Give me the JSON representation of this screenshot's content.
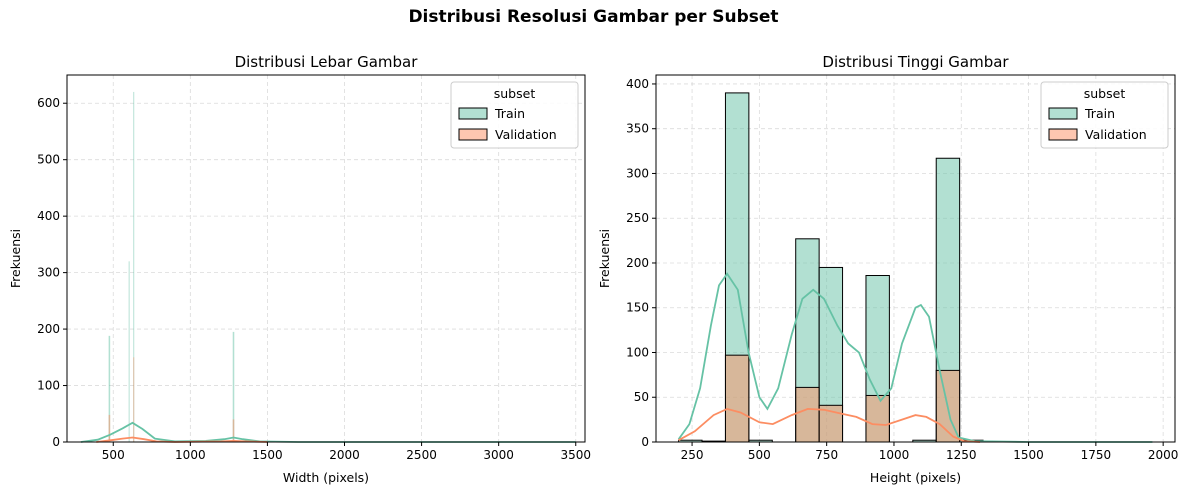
{
  "figure": {
    "suptitle": "Distribusi Resolusi Gambar per Subset",
    "colors": {
      "train": "#66c2a5",
      "validation": "#fc8d62"
    }
  },
  "chart_data": [
    {
      "type": "histogram",
      "title": "Distribusi Lebar Gambar",
      "xlabel": "Width (pixels)",
      "ylabel": "Frekuensi",
      "xlim": [
        200,
        3560
      ],
      "ylim": [
        0,
        650
      ],
      "xticks": [
        500,
        1000,
        1500,
        2000,
        2500,
        3000,
        3500
      ],
      "yticks": [
        0,
        100,
        200,
        300,
        400,
        500,
        600
      ],
      "grid": true,
      "legend": {
        "title": "subset",
        "position": "top-right",
        "entries": [
          "Train",
          "Validation"
        ]
      },
      "series": [
        {
          "name": "Train",
          "bins": [
            {
              "x0": 470,
              "x1": 480,
              "count": 188
            },
            {
              "x0": 600,
              "x1": 606,
              "count": 320
            },
            {
              "x0": 630,
              "x1": 636,
              "count": 620
            },
            {
              "x0": 1275,
              "x1": 1285,
              "count": 195
            }
          ],
          "kde": [
            [
              290,
              0
            ],
            [
              400,
              4
            ],
            [
              480,
              13
            ],
            [
              560,
              24
            ],
            [
              625,
              34
            ],
            [
              690,
              23
            ],
            [
              770,
              6
            ],
            [
              900,
              1
            ],
            [
              1100,
              2
            ],
            [
              1220,
              5
            ],
            [
              1280,
              8
            ],
            [
              1340,
              5
            ],
            [
              1450,
              1
            ],
            [
              1700,
              0
            ],
            [
              3500,
              0
            ]
          ]
        },
        {
          "name": "Validation",
          "bins": [
            {
              "x0": 470,
              "x1": 480,
              "count": 48
            },
            {
              "x0": 630,
              "x1": 636,
              "count": 150
            },
            {
              "x0": 1275,
              "x1": 1285,
              "count": 40
            }
          ],
          "kde": [
            [
              390,
              0
            ],
            [
              480,
              3
            ],
            [
              560,
              6
            ],
            [
              625,
              8
            ],
            [
              700,
              5
            ],
            [
              780,
              1
            ],
            [
              900,
              0
            ],
            [
              1200,
              1
            ],
            [
              1280,
              2
            ],
            [
              1360,
              1
            ],
            [
              1500,
              0
            ]
          ]
        }
      ]
    },
    {
      "type": "histogram",
      "title": "Distribusi Tinggi Gambar",
      "xlabel": "Height (pixels)",
      "ylabel": "Frekuensi",
      "xlim": [
        116,
        2044
      ],
      "ylim": [
        0,
        410
      ],
      "xticks": [
        250,
        500,
        750,
        1000,
        1250,
        1500,
        1750,
        2000
      ],
      "yticks": [
        0,
        50,
        100,
        150,
        200,
        250,
        300,
        350,
        400
      ],
      "grid": true,
      "legend": {
        "title": "subset",
        "position": "top-right",
        "entries": [
          "Train",
          "Validation"
        ]
      },
      "series": [
        {
          "name": "Train",
          "bins": [
            {
              "x0": 200,
              "x1": 287,
              "count": 2
            },
            {
              "x0": 287,
              "x1": 374,
              "count": 1
            },
            {
              "x0": 374,
              "x1": 461,
              "count": 390
            },
            {
              "x0": 461,
              "x1": 548,
              "count": 2
            },
            {
              "x0": 548,
              "x1": 635,
              "count": 0
            },
            {
              "x0": 635,
              "x1": 722,
              "count": 227
            },
            {
              "x0": 722,
              "x1": 809,
              "count": 195
            },
            {
              "x0": 809,
              "x1": 896,
              "count": 0
            },
            {
              "x0": 896,
              "x1": 983,
              "count": 186
            },
            {
              "x0": 983,
              "x1": 1070,
              "count": 0
            },
            {
              "x0": 1070,
              "x1": 1157,
              "count": 2
            },
            {
              "x0": 1157,
              "x1": 1244,
              "count": 317
            },
            {
              "x0": 1244,
              "x1": 1331,
              "count": 2
            }
          ],
          "kde": [
            [
              200,
              3
            ],
            [
              240,
              20
            ],
            [
              280,
              60
            ],
            [
              320,
              130
            ],
            [
              350,
              175
            ],
            [
              380,
              188
            ],
            [
              420,
              170
            ],
            [
              460,
              100
            ],
            [
              500,
              50
            ],
            [
              530,
              37
            ],
            [
              570,
              60
            ],
            [
              620,
              120
            ],
            [
              660,
              160
            ],
            [
              700,
              170
            ],
            [
              740,
              160
            ],
            [
              790,
              130
            ],
            [
              830,
              110
            ],
            [
              870,
              100
            ],
            [
              910,
              70
            ],
            [
              950,
              46
            ],
            [
              990,
              60
            ],
            [
              1030,
              110
            ],
            [
              1080,
              150
            ],
            [
              1100,
              153
            ],
            [
              1130,
              140
            ],
            [
              1170,
              80
            ],
            [
              1210,
              25
            ],
            [
              1240,
              5
            ],
            [
              1300,
              1
            ],
            [
              1500,
              0
            ],
            [
              1960,
              0
            ]
          ]
        },
        {
          "name": "Validation",
          "bins": [
            {
              "x0": 374,
              "x1": 461,
              "count": 97
            },
            {
              "x0": 635,
              "x1": 722,
              "count": 61
            },
            {
              "x0": 722,
              "x1": 809,
              "count": 41
            },
            {
              "x0": 896,
              "x1": 983,
              "count": 52
            },
            {
              "x0": 1157,
              "x1": 1244,
              "count": 80
            }
          ],
          "kde": [
            [
              200,
              2
            ],
            [
              260,
              12
            ],
            [
              330,
              30
            ],
            [
              380,
              37
            ],
            [
              430,
              33
            ],
            [
              500,
              22
            ],
            [
              550,
              20
            ],
            [
              620,
              30
            ],
            [
              680,
              37
            ],
            [
              740,
              36
            ],
            [
              800,
              32
            ],
            [
              860,
              28
            ],
            [
              920,
              20
            ],
            [
              970,
              19
            ],
            [
              1030,
              25
            ],
            [
              1080,
              30
            ],
            [
              1120,
              28
            ],
            [
              1170,
              20
            ],
            [
              1220,
              6
            ],
            [
              1260,
              1
            ],
            [
              1320,
              0
            ]
          ]
        }
      ]
    }
  ]
}
